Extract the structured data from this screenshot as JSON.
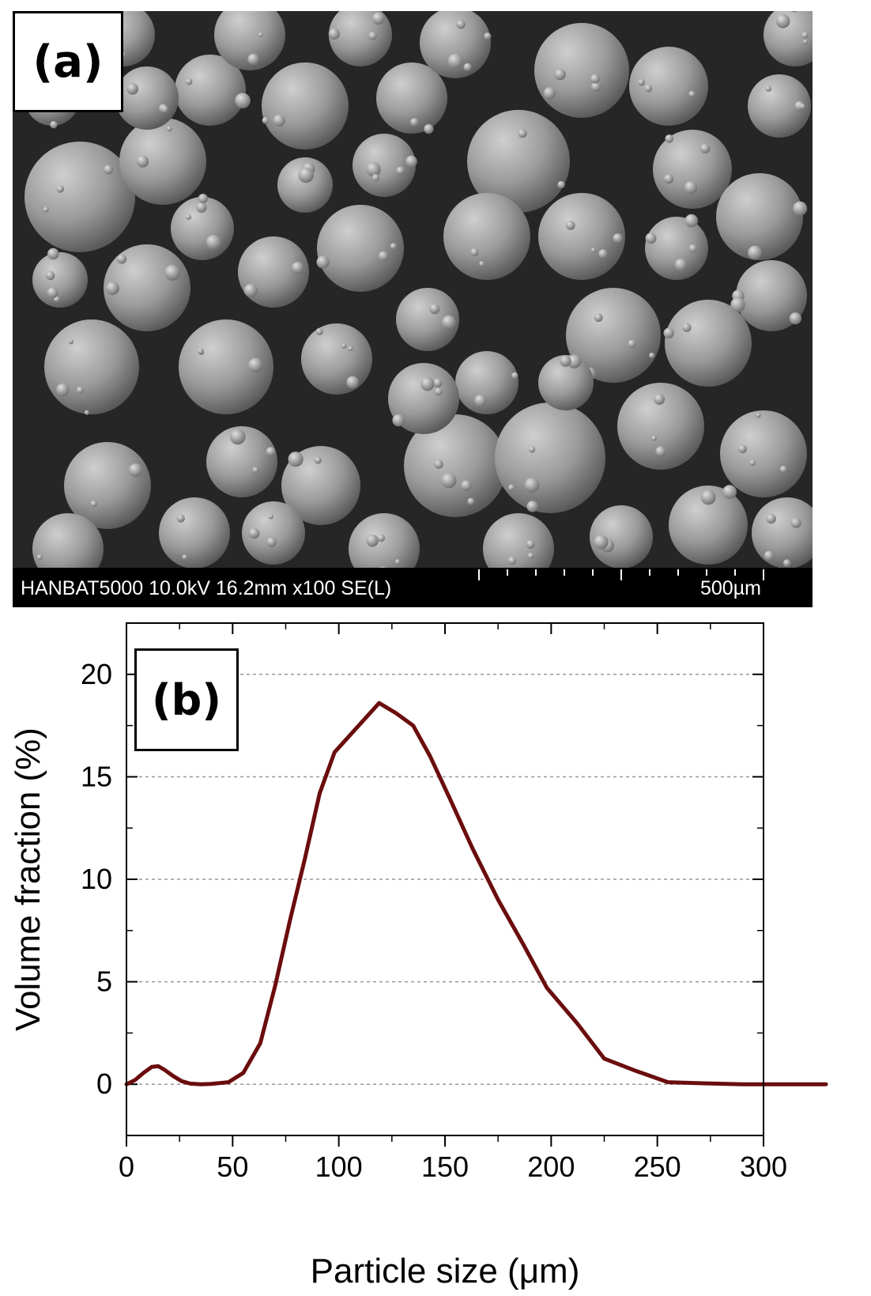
{
  "panel_a": {
    "label": "(a)",
    "sem_info": "HANBAT5000 10.0kV 16.2mm x100 SE(L)",
    "scale_bar": "500µm"
  },
  "panel_b": {
    "label": "(b)"
  },
  "chart_data": {
    "type": "line",
    "xlabel": "Particle size (μm)",
    "ylabel": "Volume fraction (%)",
    "xlim": [
      0,
      300
    ],
    "ylim": [
      -2.5,
      22.5
    ],
    "xticks": [
      0,
      50,
      100,
      150,
      200,
      250,
      300
    ],
    "yticks": [
      0,
      5,
      10,
      15,
      20
    ],
    "grid": "horizontal dashed at major y ticks",
    "line_color": "#6b0d0d",
    "series": [
      {
        "x": [
          0,
          4,
          8,
          12,
          15,
          18,
          22,
          26,
          30,
          35,
          40,
          48,
          55,
          63,
          70,
          77,
          84,
          91,
          98,
          105,
          112,
          119,
          127,
          135,
          143,
          152,
          163,
          175,
          187,
          198,
          212,
          225,
          240,
          255,
          270,
          290,
          310,
          330
        ],
        "y": [
          0,
          0.2,
          0.55,
          0.85,
          0.88,
          0.7,
          0.4,
          0.15,
          0.03,
          0,
          0.02,
          0.1,
          0.55,
          2.0,
          4.8,
          8.0,
          11.0,
          14.2,
          16.2,
          17.0,
          17.8,
          18.6,
          18.1,
          17.5,
          16.0,
          14.0,
          11.5,
          9.0,
          6.8,
          4.7,
          3.0,
          1.25,
          0.65,
          0.1,
          0.05,
          0,
          0,
          0
        ]
      }
    ]
  }
}
